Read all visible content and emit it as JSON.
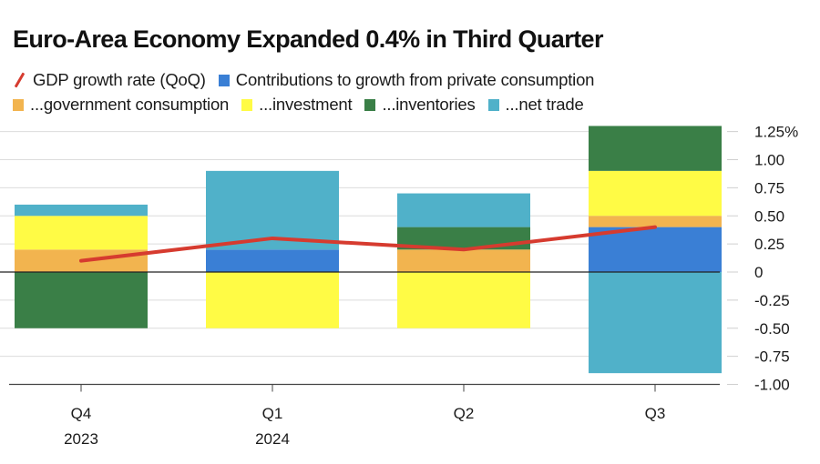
{
  "chart_data": {
    "type": "bar",
    "stacked": true,
    "title": "Euro-Area Economy Expanded 0.4% in Third Quarter",
    "categories": [
      [
        "Q4",
        "2023"
      ],
      [
        "Q1",
        "2024"
      ],
      [
        "Q2",
        ""
      ],
      [
        "Q3",
        ""
      ]
    ],
    "ylim": [
      -1.0,
      1.3
    ],
    "yticks": [
      1.25,
      1.0,
      0.75,
      0.5,
      0.25,
      0,
      -0.25,
      -0.5,
      -0.75,
      -1.0
    ],
    "ytick_labels": [
      "1.25%",
      "1.00",
      "0.75",
      "0.50",
      "0.25",
      "0",
      "-0.25",
      "-0.50",
      "-0.75",
      "-1.00"
    ],
    "grid": true,
    "yaxis_position": "right",
    "legend_position": "top",
    "line_series": {
      "name": "GDP growth rate (QoQ)",
      "color": "#d63b2f",
      "values": [
        0.1,
        0.3,
        0.2,
        0.4
      ]
    },
    "series": [
      {
        "name": "Contributions to growth from private consumption",
        "short": "private",
        "color": "#3a7fd5",
        "values": [
          0.0,
          0.2,
          0.0,
          0.4
        ]
      },
      {
        "name": "...government consumption",
        "short": "government",
        "color": "#f2b44f",
        "values": [
          0.2,
          0.0,
          0.2,
          0.1
        ]
      },
      {
        "name": "...investment",
        "short": "investment",
        "color": "#fffb45",
        "values": [
          0.3,
          -0.5,
          -0.5,
          0.4
        ]
      },
      {
        "name": "...inventories",
        "short": "inventories",
        "color": "#3a7f47",
        "values": [
          -0.5,
          0.0,
          0.2,
          0.4
        ]
      },
      {
        "name": "...net trade",
        "short": "net-trade",
        "color": "#50b1c9",
        "values": [
          0.1,
          0.7,
          0.3,
          -0.9
        ]
      }
    ]
  },
  "legend": {
    "gdp": "GDP growth rate (QoQ)",
    "private": "Contributions to growth from private consumption",
    "government": "...government consumption",
    "investment": "...investment",
    "inventories": "...inventories",
    "net_trade": "...net trade"
  }
}
